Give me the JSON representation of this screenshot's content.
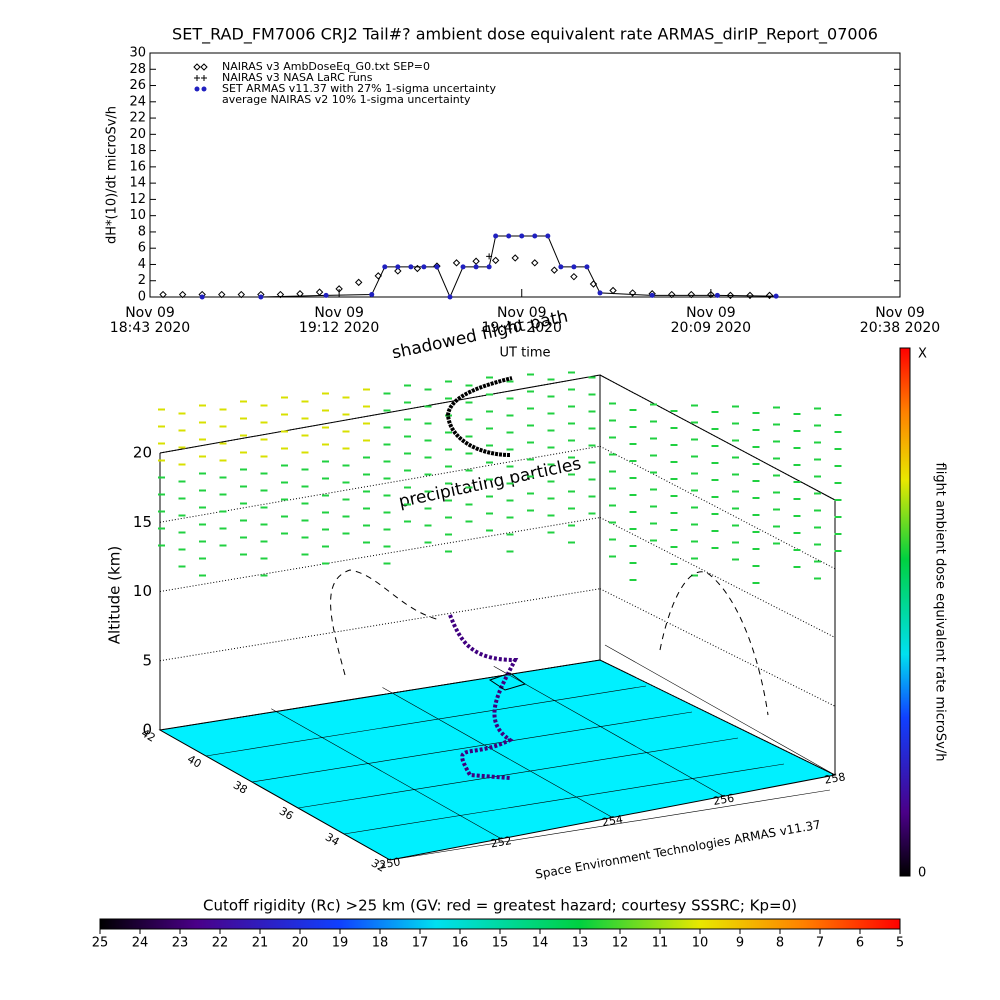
{
  "chart_data": [
    {
      "type": "line",
      "title": "SET_RAD_FM7006  CRJ2 Tail#? ambient dose equivalent rate ARMAS_dirIP_Report_07006",
      "y_label": "dH*(10)/dt microSv/h",
      "x_label": "UT time",
      "xlim": [
        "2020-11-09T18:43",
        "2020-11-09T20:38"
      ],
      "xticks": [
        {
          "value": "2020-11-09T18:43",
          "label": "Nov 09\n18:43 2020"
        },
        {
          "value": "2020-11-09T19:12",
          "label": "Nov 09\n19:12 2020"
        },
        {
          "value": "2020-11-09T19:40",
          "label": "Nov 09\n19:40 2020"
        },
        {
          "value": "2020-11-09T20:09",
          "label": "Nov 09\n20:09 2020"
        },
        {
          "value": "2020-11-09T20:38",
          "label": "Nov 09\n20:38 2020"
        }
      ],
      "ylim": [
        0,
        30
      ],
      "yticks": [
        0,
        2,
        4,
        6,
        8,
        10,
        12,
        14,
        16,
        18,
        20,
        22,
        24,
        26,
        28,
        30
      ],
      "series": [
        {
          "name": "NAIRAS v3 AmbDoseEq_G0.txt SEP=0",
          "color": "#000000",
          "marker": "diamond",
          "x": [
            "2020-11-09T18:45",
            "2020-11-09T18:48",
            "2020-11-09T18:51",
            "2020-11-09T18:54",
            "2020-11-09T18:57",
            "2020-11-09T19:00",
            "2020-11-09T19:03",
            "2020-11-09T19:06",
            "2020-11-09T19:09",
            "2020-11-09T19:12",
            "2020-11-09T19:15",
            "2020-11-09T19:18",
            "2020-11-09T19:21",
            "2020-11-09T19:24",
            "2020-11-09T19:27",
            "2020-11-09T19:30",
            "2020-11-09T19:33",
            "2020-11-09T19:36",
            "2020-11-09T19:39",
            "2020-11-09T19:42",
            "2020-11-09T19:45",
            "2020-11-09T19:48",
            "2020-11-09T19:51",
            "2020-11-09T19:54",
            "2020-11-09T19:57",
            "2020-11-09T20:00",
            "2020-11-09T20:03",
            "2020-11-09T20:06",
            "2020-11-09T20:09",
            "2020-11-09T20:12",
            "2020-11-09T20:15",
            "2020-11-09T20:18"
          ],
          "values": [
            0.3,
            0.3,
            0.3,
            0.3,
            0.3,
            0.3,
            0.3,
            0.4,
            0.6,
            1.0,
            1.8,
            2.6,
            3.2,
            3.5,
            3.8,
            4.2,
            4.4,
            4.5,
            4.8,
            4.2,
            3.3,
            2.5,
            1.6,
            0.8,
            0.5,
            0.4,
            0.3,
            0.3,
            0.3,
            0.2,
            0.2,
            0.2
          ]
        },
        {
          "name": "NAIRAS v3 NASA LaRC runs",
          "color": "#000000",
          "marker": "plus",
          "x": [
            "2020-11-09T19:35"
          ],
          "values": [
            5
          ]
        },
        {
          "name": "SET ARMAS v11.37 with 27% 1-sigma uncertainty",
          "color": "#2020c0",
          "marker": "dot",
          "line": true,
          "x": [
            "2020-11-09T18:51",
            "2020-11-09T19:00",
            "2020-11-09T19:10",
            "2020-11-09T19:17",
            "2020-11-09T19:19",
            "2020-11-09T19:21",
            "2020-11-09T19:23",
            "2020-11-09T19:25",
            "2020-11-09T19:27",
            "2020-11-09T19:29",
            "2020-11-09T19:31",
            "2020-11-09T19:33",
            "2020-11-09T19:35",
            "2020-11-09T19:36",
            "2020-11-09T19:38",
            "2020-11-09T19:40",
            "2020-11-09T19:42",
            "2020-11-09T19:44",
            "2020-11-09T19:46",
            "2020-11-09T19:48",
            "2020-11-09T19:50",
            "2020-11-09T19:52",
            "2020-11-09T20:00",
            "2020-11-09T20:10",
            "2020-11-09T20:19"
          ],
          "values": [
            0,
            0,
            0.2,
            0.3,
            3.7,
            3.7,
            3.7,
            3.7,
            3.7,
            0,
            3.7,
            3.7,
            3.7,
            7.5,
            7.5,
            7.5,
            7.5,
            7.5,
            3.7,
            3.7,
            3.7,
            0.5,
            0.2,
            0.2,
            0.1
          ]
        },
        {
          "name": "average NAIRAS v2 10% 1-sigma uncertainty",
          "color": "#000000",
          "marker": "none",
          "x": [],
          "values": []
        }
      ]
    },
    {
      "type": "surface3d",
      "annotations": [
        "shadowed flight path",
        "precipitating particles",
        "Space Environment Technologies ARMAS v11.37"
      ],
      "z_label": "Altitude (km)",
      "zlim": [
        0,
        20
      ],
      "zticks": [
        0,
        5,
        10,
        15,
        20
      ],
      "latlim": [
        32,
        42
      ],
      "latticks": [
        42,
        40,
        38,
        36,
        34,
        32
      ],
      "lonlim": [
        250,
        258
      ],
      "lonticks": [
        250,
        252,
        254,
        256,
        258
      ],
      "dose_colorbar": {
        "label": "flight ambient dose equivalent rate microSv/h",
        "top": "X",
        "bottom": "0"
      },
      "rc_colorbar": {
        "title": "Cutoff rigidity (Rc) >25 km (GV: red = greatest hazard; courtesy SSSRC; Kp=0)",
        "ticks": [
          25,
          24,
          23,
          22,
          21,
          20,
          19,
          18,
          17,
          16,
          15,
          14,
          13,
          12,
          11,
          10,
          9,
          8,
          7,
          6,
          5
        ]
      }
    }
  ]
}
